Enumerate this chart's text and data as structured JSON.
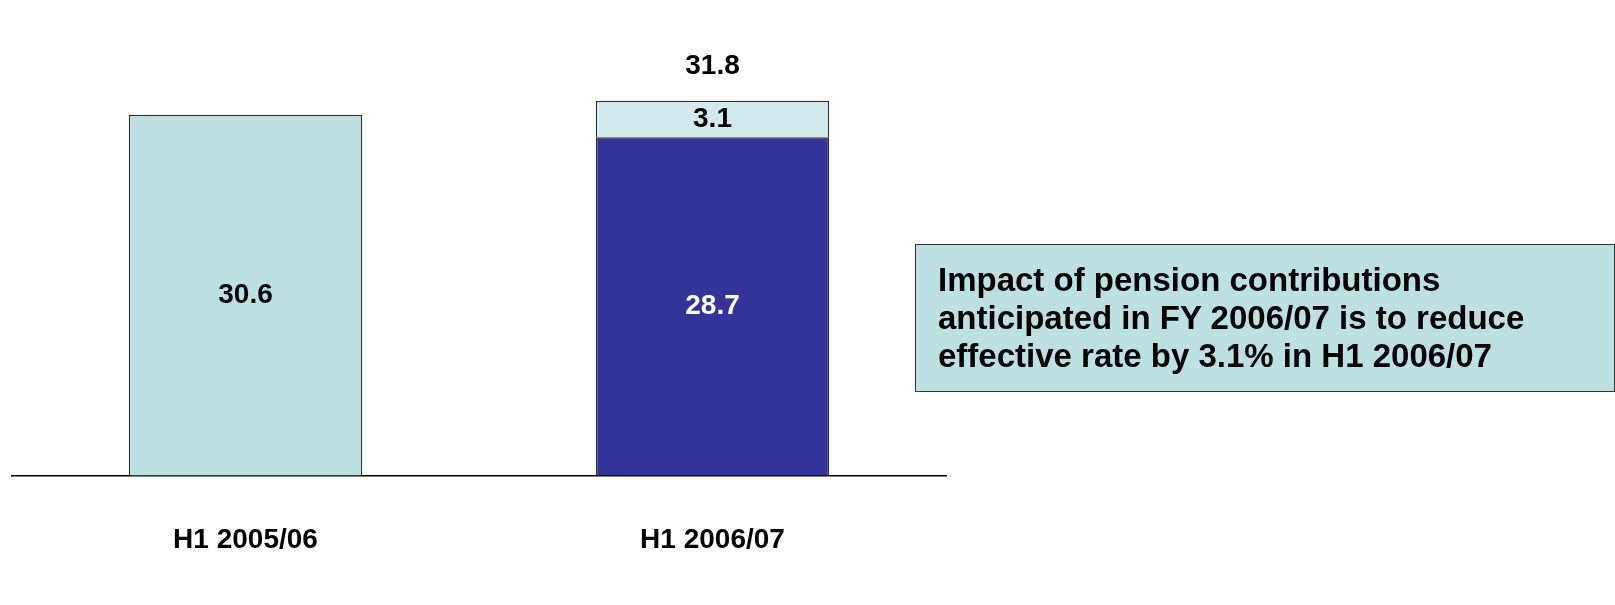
{
  "chart_data": {
    "type": "bar",
    "stacked": true,
    "tick_labels": "x",
    "categories": [
      "H1 2005/06",
      "H1 2006/07"
    ],
    "series": [
      {
        "colors": [
          "#bde0e3",
          "#333399"
        ],
        "values": [
          30.6,
          28.7
        ]
      },
      {
        "color": "#d3ebee",
        "values": [
          null,
          3.1
        ]
      }
    ],
    "data_labels": true,
    "totals": [
      null,
      "31.8"
    ],
    "legend": false,
    "annotations": [
      "Impact of pension contributions anticipated in FY 2006/07 is to reduce effective rate by 3.1% in H1 2006/07"
    ]
  }
}
